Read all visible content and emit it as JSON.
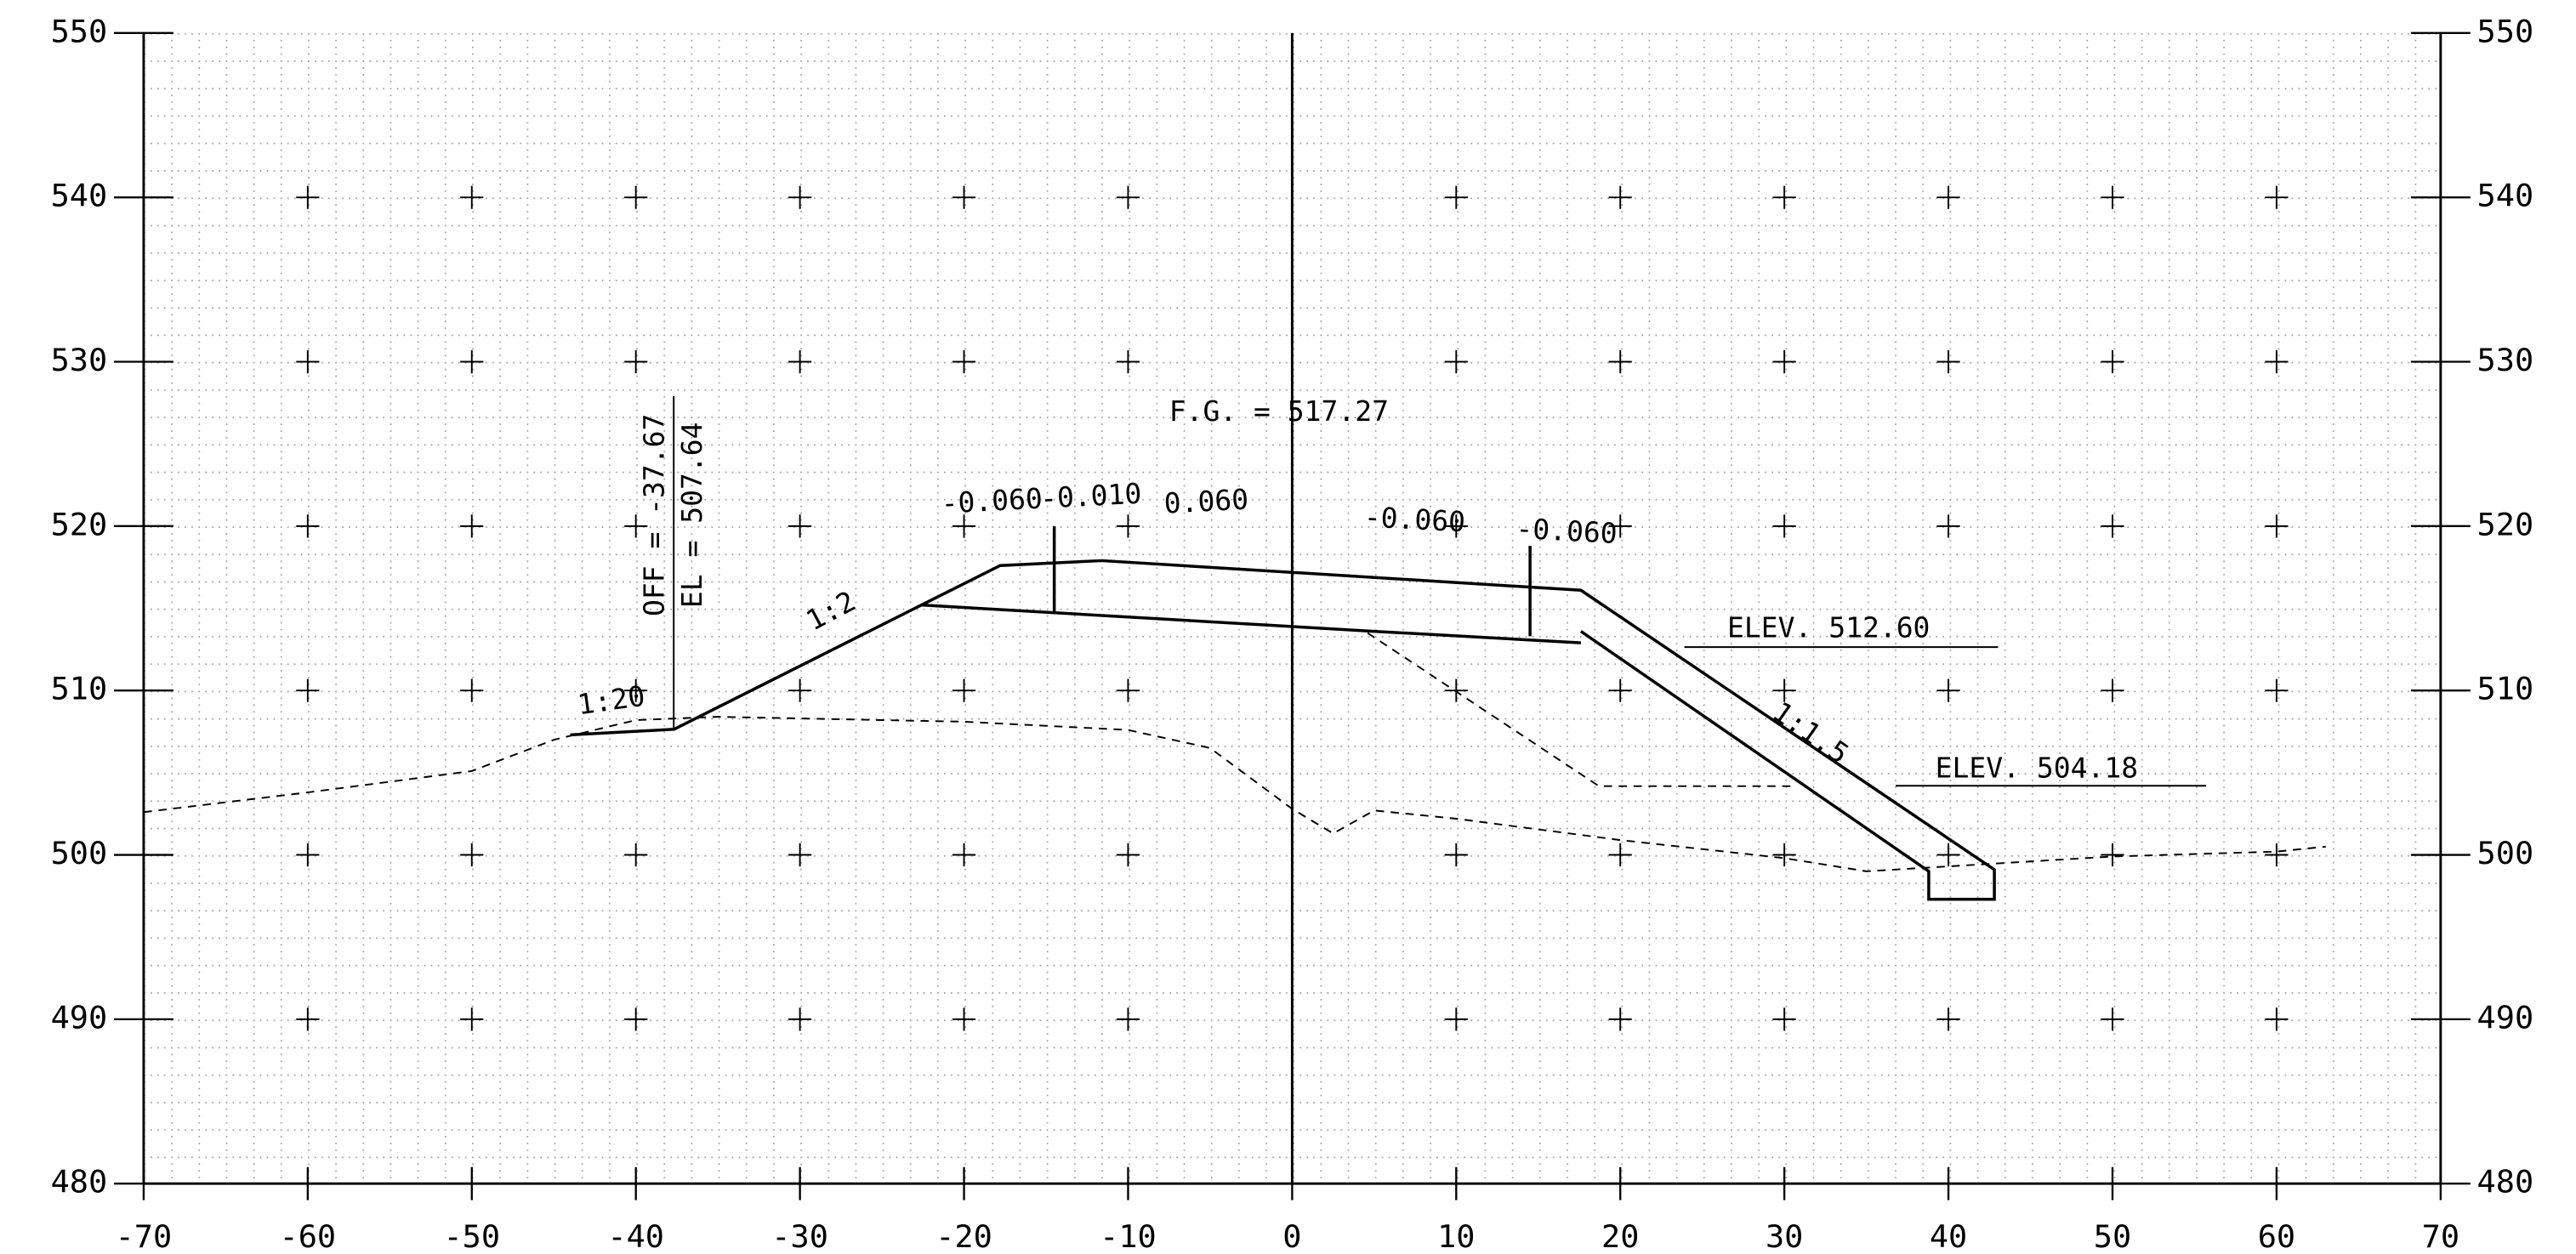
{
  "chart_data": {
    "type": "line",
    "xlim": [
      -70,
      70
    ],
    "ylim": [
      480,
      550
    ],
    "xticks": [
      -70,
      -60,
      -50,
      -40,
      -30,
      -20,
      -10,
      0,
      10,
      20,
      30,
      40,
      50,
      60,
      70
    ],
    "yticks": [
      480,
      490,
      500,
      510,
      520,
      530,
      540,
      550
    ],
    "grid": true,
    "series": [
      {
        "color": "#000000",
        "dash": true,
        "x": [
          -70,
          -60,
          -50,
          -45,
          -40,
          -35,
          -20,
          -10,
          -5,
          0,
          2.5,
          5,
          10,
          20,
          30,
          35,
          40,
          50,
          60,
          63
        ],
        "values": [
          502.6,
          503.8,
          505.1,
          507.0,
          508.2,
          508.4,
          508.1,
          507.6,
          506.5,
          502.8,
          501.3,
          502.7,
          502.2,
          500.9,
          499.8,
          499.0,
          499.3,
          499.9,
          500.2,
          500.5
        ]
      },
      {
        "color": "#000000",
        "dash": false,
        "x": [
          -44,
          -37.67,
          -22.6,
          -17.8,
          -11.6,
          17.6,
          42.8,
          42.8,
          38.8,
          38.8,
          17.6
        ],
        "values": [
          507.3,
          507.64,
          515.2,
          517.6,
          517.9,
          516.1,
          499.1,
          497.3,
          497.3,
          499.0,
          513.6
        ]
      },
      {
        "color": "#000000",
        "dash": false,
        "x": [
          -22.6,
          5,
          17.6
        ],
        "values": [
          515.2,
          513.6,
          512.9
        ]
      },
      {
        "color": "#000000",
        "dash": true,
        "x": [
          4.6,
          18.7,
          30.5
        ],
        "values": [
          513.5,
          504.18,
          504.18
        ]
      },
      {
        "color": "#000000",
        "dash": false,
        "x": [
          -14.5,
          -14.5,
          null,
          14.5,
          14.5
        ],
        "values": [
          520,
          514.8,
          null,
          518.8,
          513.3
        ]
      }
    ],
    "annotations": [
      "F.G. = 517.27",
      "-0.060",
      "-0.010",
      "0.060",
      "-0.060",
      "-0.060",
      "OFF = -37.67",
      "EL = 507.64",
      "1:2",
      "1:20",
      "1:1.5",
      "ELEV. 512.60",
      "ELEV. 504.18"
    ]
  }
}
